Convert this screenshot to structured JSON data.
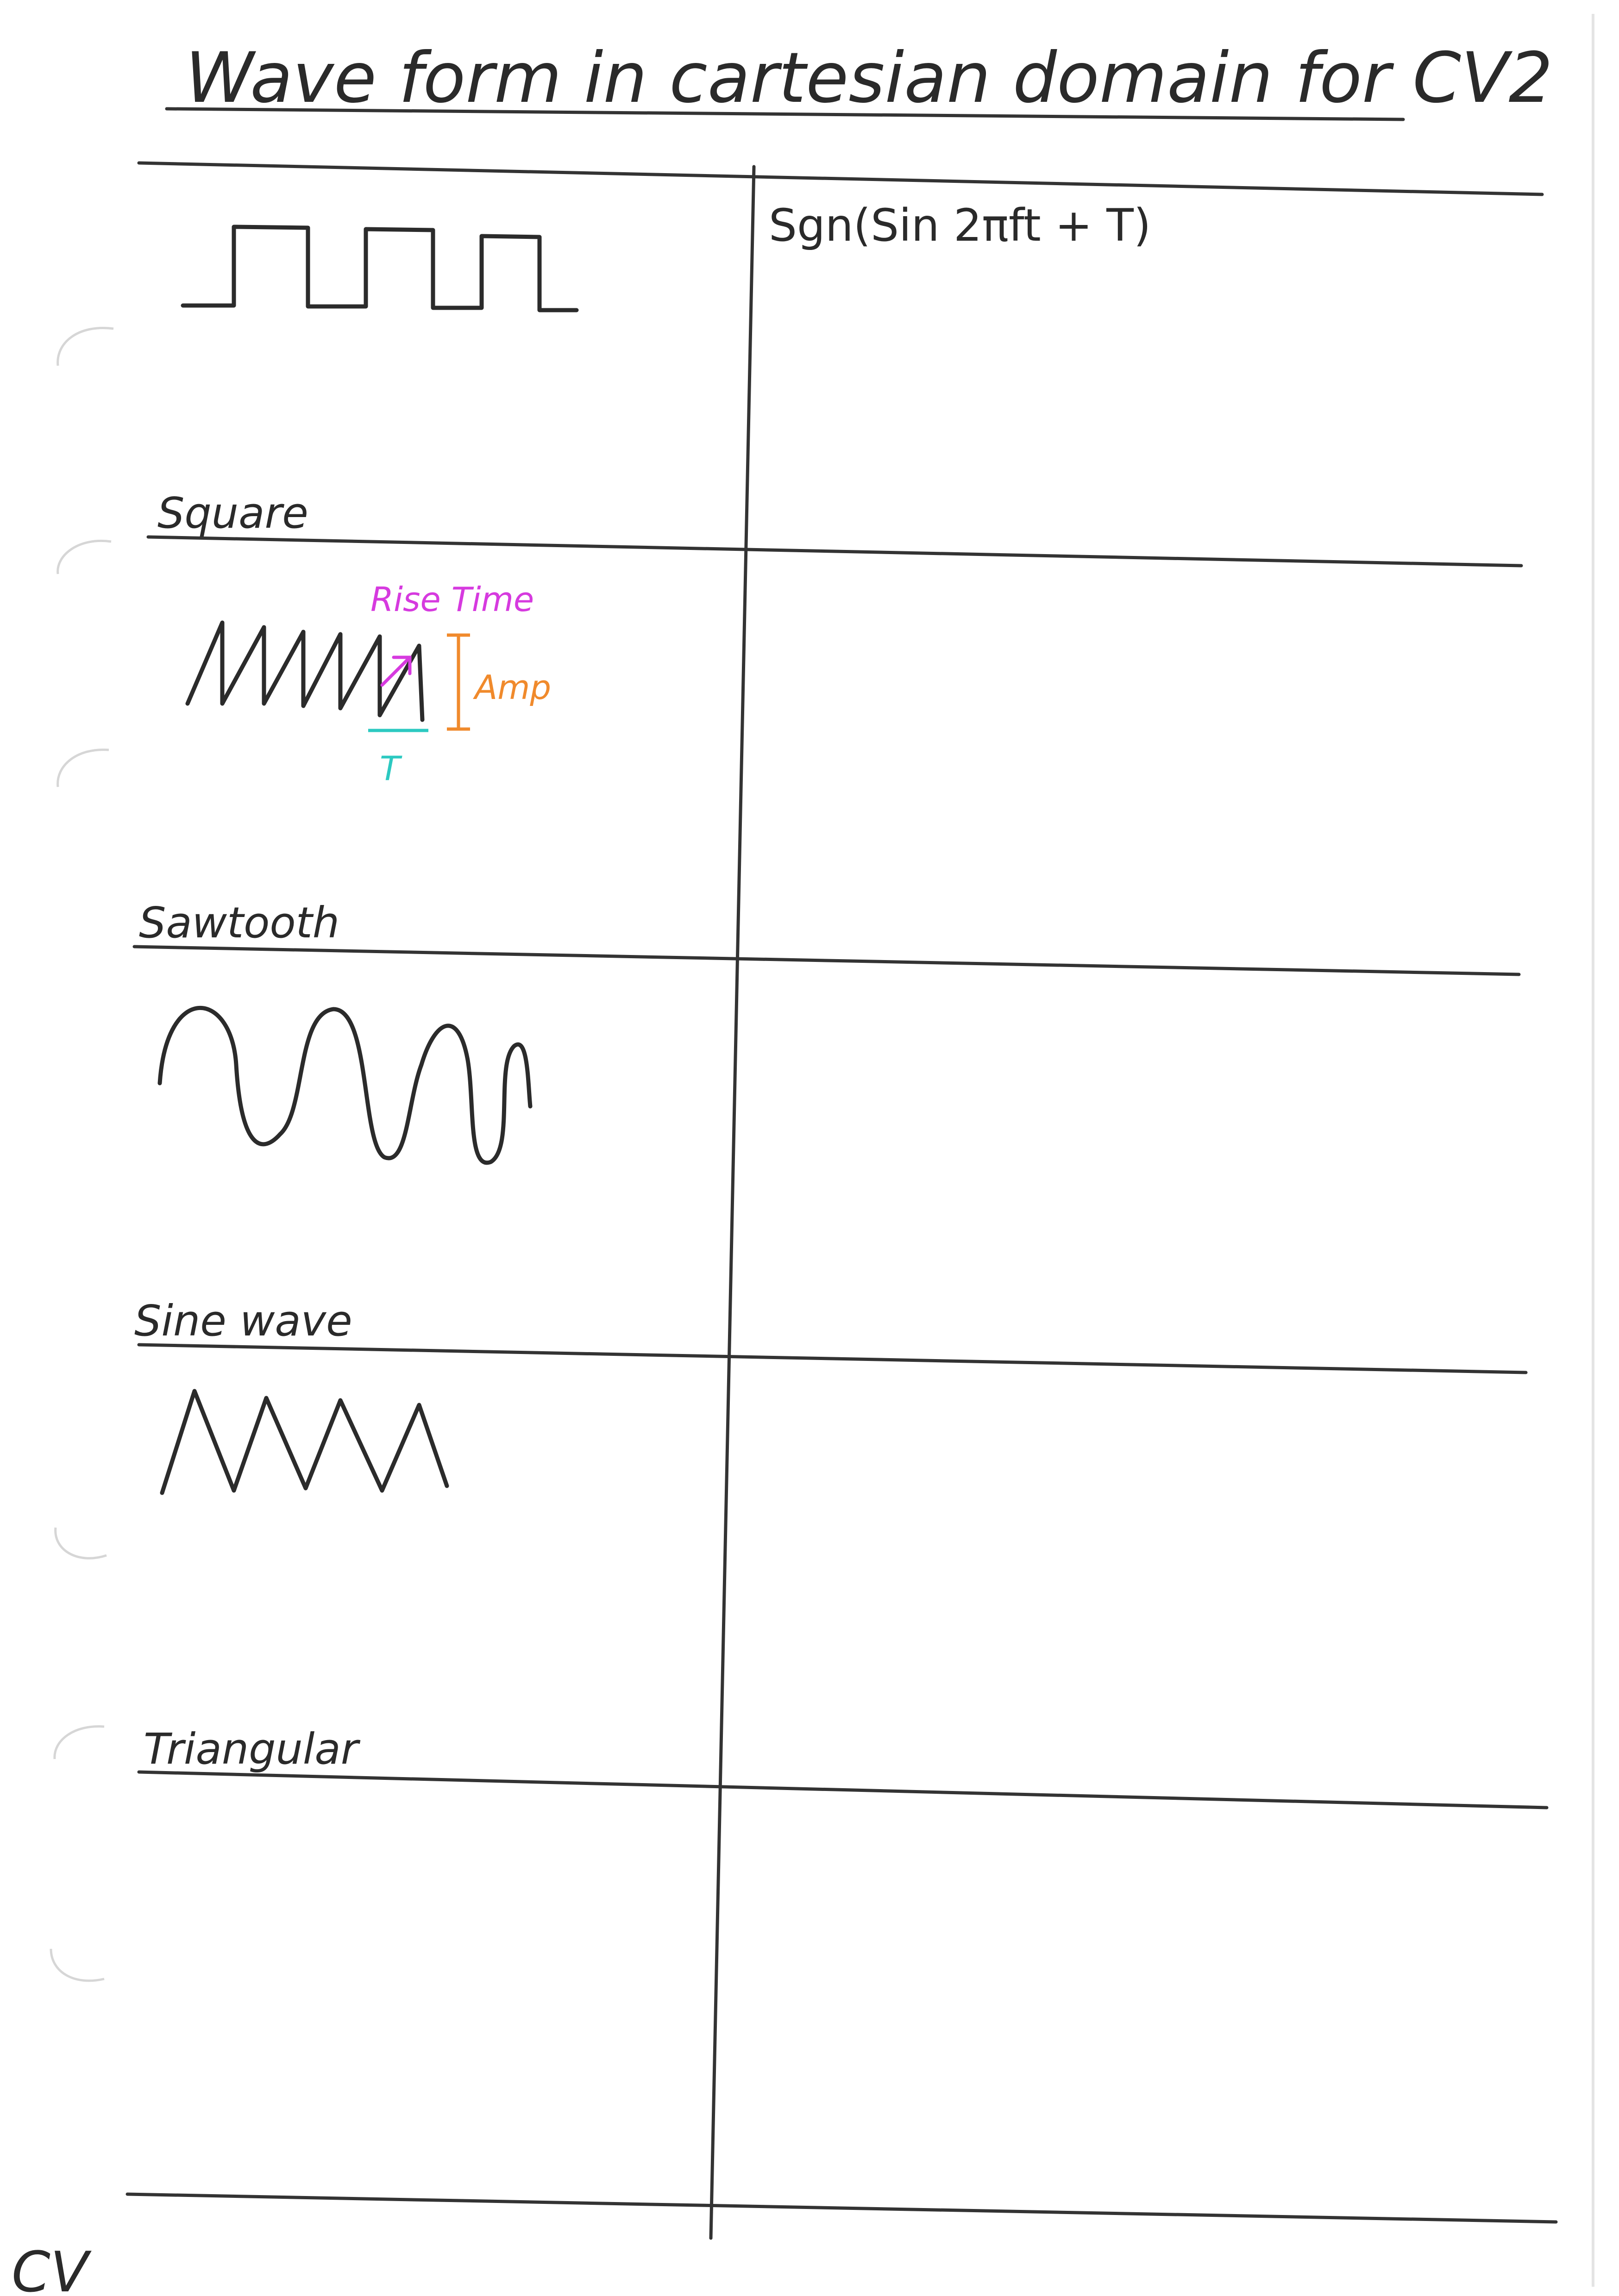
{
  "title": "Wave form in cartesian domain for CV2",
  "rows": [
    {
      "label": "Square",
      "formula": "Sgn(Sin 2πft + T)",
      "icon": "square-wave-icon"
    },
    {
      "label": "Sawtooth",
      "formula": "",
      "icon": "sawtooth-wave-icon"
    },
    {
      "label": "Sine wave",
      "formula": "",
      "icon": "sine-wave-icon"
    },
    {
      "label": "Triangular",
      "formula": "",
      "icon": "triangle-wave-icon"
    }
  ],
  "annotations": {
    "rise_time": "Rise Time",
    "amp": "Amp",
    "period": "T"
  },
  "colors": {
    "ink": "#2a2a2a",
    "rise_time": "#d63adf",
    "amp": "#f08a2c",
    "period": "#2cc9c1"
  },
  "footer": "CV"
}
